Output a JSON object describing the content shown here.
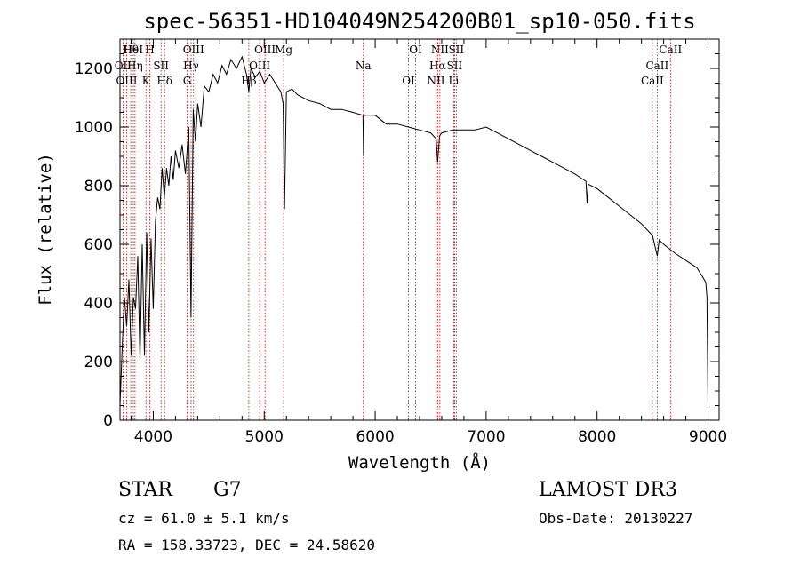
{
  "chart_data": {
    "type": "line",
    "title": "spec-56351-HD104049N254200B01_sp10-050.fits",
    "xlabel": "Wavelength (Å)",
    "ylabel": "Flux (relative)",
    "xlim": [
      3700,
      9100
    ],
    "ylim": [
      0,
      1300
    ],
    "xticks": [
      4000,
      5000,
      6000,
      7000,
      8000,
      9000
    ],
    "yticks": [
      0,
      200,
      400,
      600,
      800,
      1000,
      1200
    ],
    "grid": false,
    "series": [
      {
        "name": "flux",
        "x": [
          3700,
          3720,
          3740,
          3760,
          3780,
          3800,
          3820,
          3840,
          3860,
          3880,
          3900,
          3920,
          3940,
          3960,
          3980,
          4000,
          4020,
          4040,
          4060,
          4080,
          4100,
          4120,
          4140,
          4160,
          4180,
          4200,
          4230,
          4260,
          4290,
          4320,
          4340,
          4360,
          4380,
          4400,
          4430,
          4460,
          4500,
          4540,
          4580,
          4620,
          4660,
          4700,
          4750,
          4800,
          4840,
          4861,
          4880,
          4920,
          4960,
          5000,
          5050,
          5100,
          5150,
          5170,
          5183,
          5200,
          5250,
          5300,
          5400,
          5500,
          5600,
          5700,
          5800,
          5890,
          5895,
          5900,
          6000,
          6100,
          6200,
          6300,
          6400,
          6500,
          6550,
          6563,
          6580,
          6600,
          6700,
          6800,
          6900,
          7000,
          7100,
          7200,
          7300,
          7400,
          7500,
          7600,
          7700,
          7800,
          7900,
          7910,
          7920,
          8000,
          8100,
          8200,
          8300,
          8400,
          8500,
          8542,
          8560,
          8600,
          8700,
          8800,
          8900,
          8950,
          8980,
          8990,
          9000
        ],
        "y": [
          50,
          250,
          420,
          320,
          480,
          220,
          420,
          380,
          560,
          200,
          600,
          220,
          640,
          300,
          620,
          380,
          680,
          760,
          720,
          860,
          760,
          860,
          800,
          900,
          820,
          920,
          860,
          940,
          840,
          1000,
          350,
          1060,
          950,
          1080,
          1000,
          1140,
          1120,
          1180,
          1150,
          1210,
          1180,
          1230,
          1200,
          1240,
          1180,
          1120,
          1200,
          1170,
          1190,
          1150,
          1180,
          1150,
          1120,
          1080,
          720,
          1120,
          1130,
          1110,
          1090,
          1080,
          1060,
          1060,
          1050,
          1040,
          900,
          1040,
          1040,
          1010,
          1010,
          1000,
          990,
          980,
          960,
          880,
          970,
          980,
          990,
          990,
          990,
          1000,
          980,
          960,
          940,
          920,
          900,
          880,
          860,
          840,
          815,
          740,
          805,
          790,
          760,
          730,
          700,
          670,
          630,
          560,
          615,
          600,
          570,
          545,
          520,
          490,
          470,
          420,
          50
        ]
      }
    ],
    "spectral_lines": [
      {
        "label": "Hθ",
        "wavelength": 3797
      },
      {
        "label": "OII",
        "wavelength": 3727
      },
      {
        "label": "OIII",
        "wavelength": 3760
      },
      {
        "label": "HeI",
        "wavelength": 3820
      },
      {
        "label": "Hη",
        "wavelength": 3835
      },
      {
        "label": "K",
        "wavelength": 3934
      },
      {
        "label": "H",
        "wavelength": 3969
      },
      {
        "label": "SII",
        "wavelength": 4070
      },
      {
        "label": "Hδ",
        "wavelength": 4102
      },
      {
        "label": "OIII",
        "wavelength": 4363
      },
      {
        "label": "Hγ",
        "wavelength": 4341
      },
      {
        "label": "G",
        "wavelength": 4305
      },
      {
        "label": "OIII",
        "wavelength": 5007
      },
      {
        "label": "OIII",
        "wavelength": 4959
      },
      {
        "label": "Hβ",
        "wavelength": 4861
      },
      {
        "label": "Mg",
        "wavelength": 5175
      },
      {
        "label": "Na",
        "wavelength": 5893
      },
      {
        "label": "OI",
        "wavelength": 6300
      },
      {
        "label": "OI",
        "wavelength": 6364
      },
      {
        "label": "Hα",
        "wavelength": 6563
      },
      {
        "label": "NII",
        "wavelength": 6548
      },
      {
        "label": "NII",
        "wavelength": 6583
      },
      {
        "label": "SII",
        "wavelength": 6716
      },
      {
        "label": "Li",
        "wavelength": 6708
      },
      {
        "label": "SII",
        "wavelength": 6731
      },
      {
        "label": "CaII",
        "wavelength": 8542
      },
      {
        "label": "CaII",
        "wavelength": 8498
      },
      {
        "label": "CaII",
        "wavelength": 8662
      }
    ]
  },
  "info": {
    "object_class": "STAR",
    "subclass": "G7",
    "survey": "LAMOST DR3",
    "cz": "cz = 61.0 ± 5.1 km/s",
    "obs_date": "Obs-Date: 20130227",
    "coords": "RA = 158.33723, DEC =  24.58620"
  },
  "colors": {
    "line_marker": "#c00000",
    "spectrum": "#000000"
  }
}
